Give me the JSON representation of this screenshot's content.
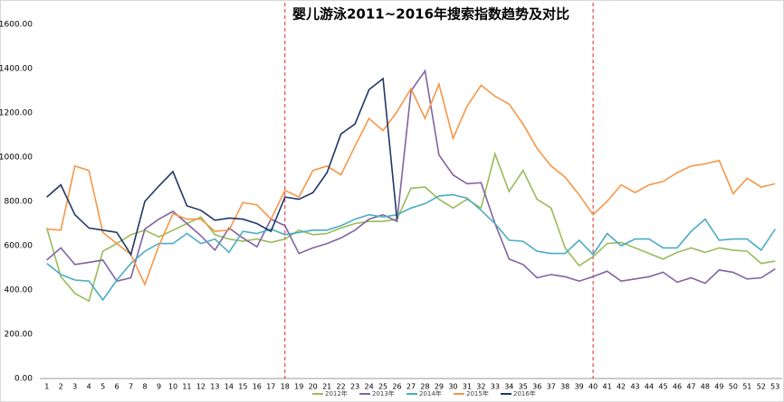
{
  "chart_data": {
    "type": "line",
    "title": "婴儿游泳2011~2016年搜索指数趋势及对比",
    "x": [
      1,
      2,
      3,
      4,
      5,
      6,
      7,
      8,
      9,
      10,
      11,
      12,
      13,
      14,
      15,
      16,
      17,
      18,
      19,
      20,
      21,
      22,
      23,
      24,
      25,
      26,
      27,
      28,
      29,
      30,
      31,
      32,
      33,
      34,
      35,
      36,
      37,
      38,
      39,
      40,
      41,
      42,
      43,
      44,
      45,
      46,
      47,
      48,
      49,
      50,
      51,
      52,
      53
    ],
    "xlim": [
      0.5,
      53.5
    ],
    "ylim": [
      0,
      1600
    ],
    "yticks": [
      {
        "value": 0,
        "label": "0.00"
      },
      {
        "value": 200,
        "label": "200.00"
      },
      {
        "value": 400,
        "label": "400.00"
      },
      {
        "value": 600,
        "label": "600.00"
      },
      {
        "value": 800,
        "label": "800.00"
      },
      {
        "value": 1000,
        "label": "1000.00"
      },
      {
        "value": 1200,
        "label": "1200.00"
      },
      {
        "value": 1400,
        "label": "1400.00"
      },
      {
        "value": 1600,
        "label": "1600.00"
      }
    ],
    "reference_lines_x": [
      18,
      40
    ],
    "reference_color": "#e0282b",
    "series": [
      {
        "name": "2012年",
        "color": "#9bbb59",
        "values": [
          680,
          460,
          385,
          350,
          575,
          610,
          650,
          670,
          640,
          670,
          700,
          730,
          650,
          630,
          620,
          630,
          615,
          630,
          670,
          650,
          655,
          680,
          700,
          710,
          710,
          720,
          860,
          865,
          810,
          770,
          810,
          770,
          1015,
          845,
          940,
          810,
          770,
          590,
          510,
          550,
          610,
          615,
          590,
          565,
          540,
          570,
          590,
          570,
          590,
          580,
          575,
          520,
          530
        ]
      },
      {
        "name": "2013年",
        "color": "#8064a2",
        "values": [
          535,
          590,
          515,
          525,
          535,
          440,
          455,
          675,
          720,
          755,
          700,
          645,
          580,
          680,
          635,
          595,
          720,
          690,
          565,
          590,
          610,
          635,
          670,
          720,
          740,
          710,
          1300,
          1390,
          1010,
          920,
          880,
          885,
          700,
          540,
          515,
          455,
          470,
          460,
          440,
          460,
          485,
          440,
          450,
          460,
          480,
          435,
          455,
          430,
          490,
          480,
          450,
          455,
          495
        ]
      },
      {
        "name": "2014年",
        "color": "#4bacc6",
        "values": [
          520,
          470,
          445,
          440,
          355,
          445,
          520,
          575,
          610,
          610,
          655,
          610,
          630,
          570,
          665,
          655,
          675,
          650,
          660,
          670,
          670,
          690,
          720,
          740,
          730,
          740,
          770,
          790,
          825,
          830,
          815,
          760,
          700,
          625,
          620,
          575,
          565,
          565,
          625,
          560,
          655,
          600,
          630,
          630,
          590,
          590,
          665,
          720,
          625,
          630,
          630,
          580,
          675
        ]
      },
      {
        "name": "2015年",
        "color": "#f79646",
        "values": [
          675,
          670,
          960,
          940,
          660,
          610,
          560,
          425,
          600,
          745,
          720,
          720,
          665,
          670,
          795,
          785,
          720,
          850,
          820,
          940,
          960,
          920,
          1050,
          1175,
          1120,
          1205,
          1310,
          1175,
          1330,
          1085,
          1230,
          1325,
          1275,
          1240,
          1150,
          1040,
          960,
          910,
          830,
          740,
          800,
          875,
          840,
          875,
          890,
          930,
          960,
          970,
          985,
          835,
          905,
          865,
          880
        ]
      },
      {
        "name": "2016年",
        "color": "#1f3864",
        "values": [
          820,
          875,
          740,
          680,
          670,
          660,
          560,
          800,
          870,
          935,
          780,
          760,
          715,
          725,
          720,
          700,
          665,
          820,
          810,
          840,
          930,
          1105,
          1150,
          1305,
          1355,
          720,
          null,
          null,
          null,
          null,
          null,
          null,
          null,
          null,
          null,
          null,
          null,
          null,
          null,
          null,
          null,
          null,
          null,
          null,
          null,
          null,
          null,
          null,
          null,
          null,
          null,
          null,
          null
        ]
      }
    ]
  }
}
